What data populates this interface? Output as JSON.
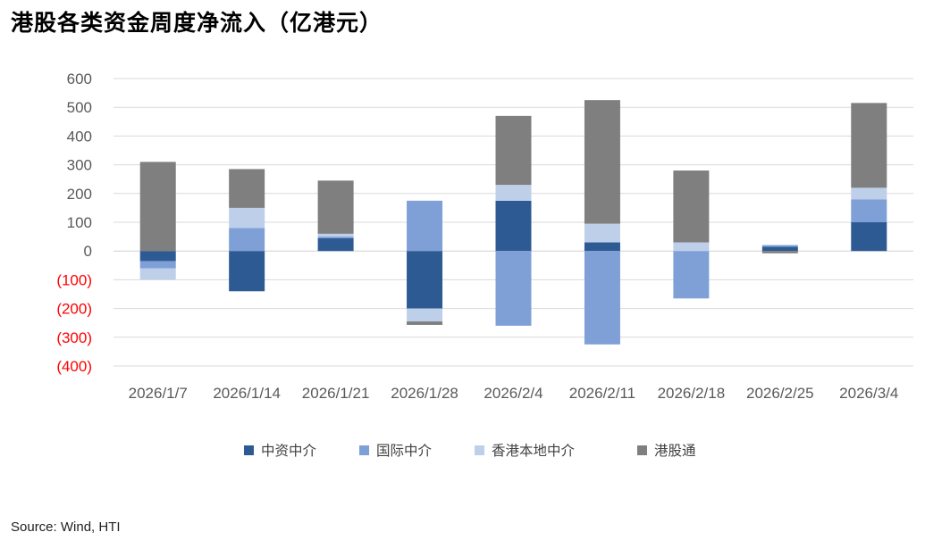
{
  "title": "港股各类资金周度净流入（亿港元）",
  "source": "Source: Wind, HTI",
  "chart_data": {
    "type": "bar",
    "stacked": true,
    "title": "港股各类资金周度净流入（亿港元）",
    "xlabel": "",
    "ylabel": "",
    "ylim": [
      -400,
      600
    ],
    "yticks": [
      600,
      500,
      400,
      300,
      200,
      100,
      0,
      -100,
      -200,
      -300,
      -400
    ],
    "ytick_labels": [
      "600",
      "500",
      "400",
      "300",
      "200",
      "100",
      "0",
      "(100)",
      "(200)",
      "(300)",
      "(400)"
    ],
    "negative_label_color": "#FF0000",
    "positive_label_color": "#595959",
    "grid": true,
    "legend_position": "bottom",
    "categories": [
      "2026/1/7",
      "2026/1/14",
      "2026/1/21",
      "2026/1/28",
      "2026/2/4",
      "2026/2/11",
      "2026/2/18",
      "2026/2/25",
      "2026/3/4"
    ],
    "series": [
      {
        "name": "中资中介",
        "color": "#2E5A94",
        "values": [
          -35,
          -140,
          45,
          -200,
          175,
          30,
          0,
          15,
          100
        ]
      },
      {
        "name": "国际中介",
        "color": "#7FA0D6",
        "values": [
          -25,
          80,
          5,
          175,
          -260,
          -325,
          -165,
          5,
          80
        ]
      },
      {
        "name": "香港本地中介",
        "color": "#BECFEA",
        "values": [
          -40,
          70,
          10,
          -45,
          55,
          65,
          30,
          2,
          40
        ]
      },
      {
        "name": "港股通",
        "color": "#7F7F7F",
        "values": [
          310,
          135,
          185,
          -12,
          240,
          430,
          250,
          -8,
          295
        ]
      }
    ]
  }
}
